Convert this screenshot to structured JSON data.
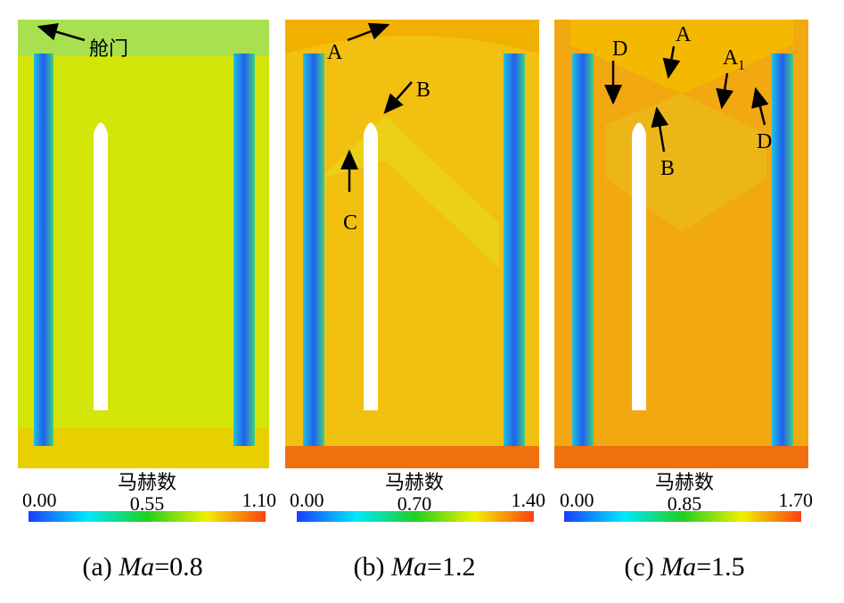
{
  "panels": [
    {
      "caption_prefix": "(a) ",
      "caption_var": "Ma",
      "caption_value": "=0.8",
      "colorbar": {
        "title": "马赫数",
        "min": "0.00",
        "mid": "0.55",
        "max": "1.10"
      },
      "annotations": [
        "舱门"
      ],
      "background": "#d2e60a"
    },
    {
      "caption_prefix": "(b) ",
      "caption_var": "Ma",
      "caption_value": "=1.2",
      "colorbar": {
        "title": "马赫数",
        "min": "0.00",
        "mid": "0.70",
        "max": "1.40"
      },
      "annotations": [
        "A",
        "B",
        "C"
      ],
      "background": "#f2c010"
    },
    {
      "caption_prefix": "(c) ",
      "caption_var": "Ma",
      "caption_value": "=1.5",
      "colorbar": {
        "title": "马赫数",
        "min": "0.00",
        "mid": "0.85",
        "max": "1.70"
      },
      "annotations": [
        "D",
        "A",
        "A",
        "1",
        "D",
        "B"
      ],
      "background": "#f2a810"
    }
  ],
  "colors": {
    "colormap": [
      "#1a3cff",
      "#00e8ff",
      "#20d020",
      "#f0f000",
      "#ff4010"
    ]
  }
}
